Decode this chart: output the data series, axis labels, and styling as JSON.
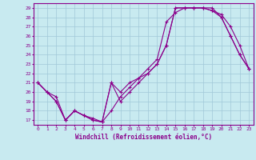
{
  "xlabel": "Windchill (Refroidissement éolien,°C)",
  "bg_color": "#c8eaf0",
  "line_color": "#8b008b",
  "marker": "+",
  "xlim": [
    -0.5,
    23.5
  ],
  "ylim": [
    16.5,
    29.5
  ],
  "yticks": [
    17,
    18,
    19,
    20,
    21,
    22,
    23,
    24,
    25,
    26,
    27,
    28,
    29
  ],
  "xticks": [
    0,
    1,
    2,
    3,
    4,
    5,
    6,
    7,
    8,
    9,
    10,
    11,
    12,
    13,
    14,
    15,
    16,
    17,
    18,
    19,
    20,
    21,
    22,
    23
  ],
  "series1": {
    "x": [
      0,
      1,
      2,
      3,
      4,
      5,
      6,
      7,
      8,
      9,
      10,
      11,
      12,
      13,
      14,
      15,
      16,
      17,
      18,
      19,
      20,
      21,
      22,
      23
    ],
    "y": [
      21,
      20,
      19,
      17,
      18,
      17.5,
      17,
      16.8,
      21,
      19,
      20,
      21,
      22,
      23,
      25,
      29,
      29,
      29,
      29,
      28.7,
      28,
      26,
      24,
      22.5
    ]
  },
  "series2": {
    "x": [
      0,
      1,
      2,
      3,
      4,
      5,
      6,
      7,
      8,
      9,
      10,
      11,
      12,
      13,
      14,
      15,
      16,
      17,
      18,
      19,
      20,
      21,
      22,
      23
    ],
    "y": [
      21,
      20,
      19.5,
      17,
      18,
      17.5,
      17.2,
      16.8,
      18,
      19.5,
      20.5,
      21.5,
      22.5,
      23.5,
      27.5,
      28.5,
      29,
      29,
      29,
      29,
      28,
      26,
      24,
      22.5
    ]
  },
  "series3": {
    "x": [
      0,
      1,
      2,
      3,
      4,
      5,
      6,
      7,
      8,
      9,
      10,
      11,
      12,
      13,
      14,
      15,
      16,
      17,
      18,
      19,
      20,
      21,
      22,
      23
    ],
    "y": [
      21,
      20,
      19,
      17,
      18,
      17.5,
      17,
      16.8,
      21,
      20,
      21,
      21.5,
      22,
      23,
      25,
      29,
      29,
      29,
      29,
      28.7,
      28.3,
      27,
      25,
      22.5
    ]
  },
  "grid_color": "#a0c8d8",
  "tick_fontsize": 4.5,
  "xlabel_fontsize": 5.5,
  "spine_color": "#8b008b",
  "spine_linewidth": 0.8,
  "line_width": 0.8,
  "marker_size": 3
}
